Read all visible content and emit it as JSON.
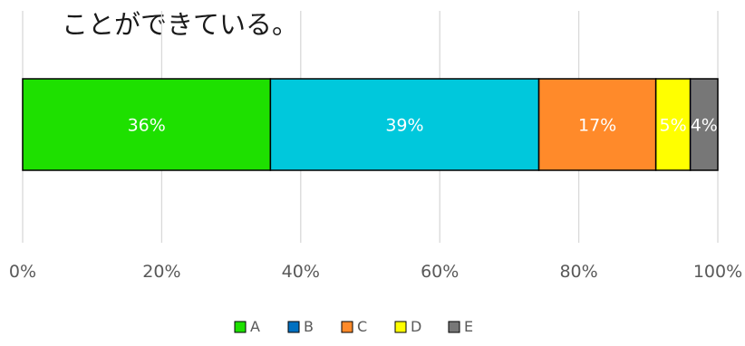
{
  "chart_data": {
    "type": "bar",
    "orientation": "horizontal",
    "stacked": "100%",
    "title": "ことができている。",
    "xlabel": "",
    "ylabel": "",
    "xlim": [
      0,
      100
    ],
    "x_ticks": [
      "0%",
      "20%",
      "40%",
      "60%",
      "80%",
      "100%"
    ],
    "grid": true,
    "legend_position": "bottom",
    "series": [
      {
        "name": "A",
        "value": 36,
        "label": "36%",
        "color": "#1ee000"
      },
      {
        "name": "B",
        "value": 39,
        "label": "39%",
        "color": "#00c8dc"
      },
      {
        "name": "C",
        "value": 17,
        "label": "17%",
        "color": "#ff8a2a"
      },
      {
        "name": "D",
        "value": 5,
        "label": "5%",
        "color": "#ffff00"
      },
      {
        "name": "E",
        "value": 4,
        "label": "4%",
        "color": "#777777"
      }
    ],
    "legend": [
      {
        "name": "A",
        "color": "#1ee000"
      },
      {
        "name": "B",
        "color": "#0070c0"
      },
      {
        "name": "C",
        "color": "#ff8a2a"
      },
      {
        "name": "D",
        "color": "#ffff00"
      },
      {
        "name": "E",
        "color": "#777777"
      }
    ]
  }
}
